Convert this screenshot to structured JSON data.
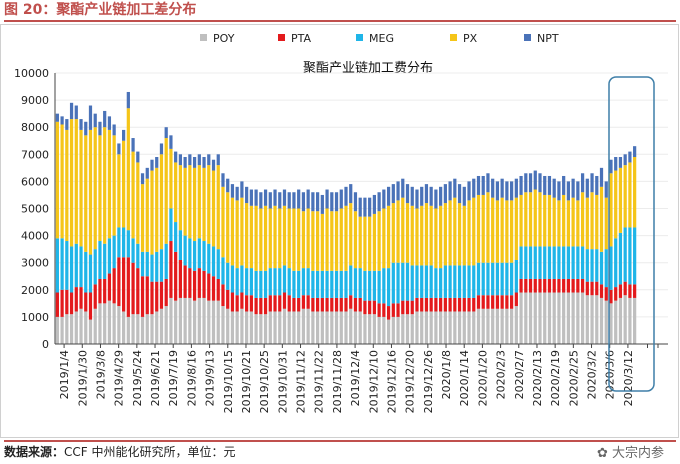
{
  "figure_title": "图 20：聚酯产业链加工差分布",
  "source_label": "数据来源：",
  "source_text": "CCF 中州能化研究所，单位：元",
  "watermark": "大宗内参",
  "colors": {
    "POY": "#bfbfbf",
    "PTA": "#e31a1c",
    "MEG": "#1fb5e8",
    "PX": "#f5c518",
    "NPT": "#4a72b8",
    "accent": "#c0504d",
    "highlight": "#3f7fa8"
  },
  "chart_data": {
    "type": "bar",
    "stacked": true,
    "title": "聚酯产业链加工费分布",
    "ylim": [
      0,
      10000
    ],
    "yticks": [
      0,
      1000,
      2000,
      3000,
      4000,
      5000,
      6000,
      7000,
      8000,
      9000,
      10000
    ],
    "legend_position": "top",
    "series_names": [
      "POY",
      "PTA",
      "MEG",
      "PX",
      "NPT"
    ],
    "tick_labels": [
      "2019/1/4",
      "2019/1/30",
      "2019/3/8",
      "2019/4/29",
      "2019/5/24",
      "2019/6/21",
      "2019/7/19",
      "2019/8/16",
      "2019/9/13",
      "2019/10/15",
      "2019/10/21",
      "2019/10/25",
      "2019/10/31",
      "2019/11/12",
      "2019/11/22",
      "2019/11/28",
      "2019/12/4",
      "2019/12/10",
      "2019/12/16",
      "2019/12/20",
      "2019/12/26",
      "2020/1/8",
      "2020/1/14",
      "2020/1/20",
      "2020/2/3",
      "2020/2/7",
      "2020/2/13",
      "2020/2/19",
      "2020/2/25",
      "2020/3/2",
      "2020/3/6",
      "2020/3/12"
    ],
    "totals": [
      8500,
      8400,
      8300,
      8900,
      8800,
      8300,
      8200,
      8800,
      8500,
      8200,
      8600,
      8400,
      8100,
      7400,
      7900,
      9300,
      7600,
      7100,
      6300,
      6500,
      6800,
      6900,
      7400,
      8000,
      7700,
      7100,
      7000,
      6900,
      7000,
      6900,
      7000,
      6900,
      7000,
      6800,
      7000,
      6300,
      6100,
      5900,
      5800,
      6000,
      5800,
      5700,
      5700,
      5600,
      5700,
      5600,
      5700,
      5600,
      5700,
      5600,
      5600,
      5700,
      5600,
      5700,
      5600,
      5600,
      5500,
      5700,
      5600,
      5600,
      5700,
      5800,
      5900,
      5600,
      5400,
      5400,
      5400,
      5500,
      5600,
      5700,
      5800,
      5900,
      6000,
      6100,
      5900,
      5800,
      5700,
      5800,
      5900,
      5800,
      5700,
      5800,
      5900,
      6000,
      6100,
      5900,
      5800,
      6000,
      6100,
      6200,
      6200,
      6300,
      6100,
      6000,
      6100,
      6000,
      6000,
      6100,
      6200,
      6300,
      6300,
      6400,
      6300,
      6200,
      6200,
      6100,
      6000,
      6200,
      6000,
      6100,
      6000,
      6300,
      6100,
      6300,
      6200,
      6500,
      6000,
      6800,
      6900,
      6900,
      7000,
      7100,
      7300
    ],
    "poy": [
      1000,
      1000,
      1100,
      1100,
      1200,
      1300,
      1200,
      900,
      1300,
      1500,
      1500,
      1600,
      1500,
      1400,
      1200,
      1000,
      1100,
      1100,
      1000,
      1100,
      1100,
      1200,
      1300,
      1400,
      1700,
      1600,
      1700,
      1700,
      1700,
      1600,
      1700,
      1700,
      1600,
      1600,
      1600,
      1400,
      1300,
      1200,
      1200,
      1300,
      1200,
      1200,
      1100,
      1100,
      1100,
      1200,
      1200,
      1200,
      1300,
      1200,
      1200,
      1200,
      1300,
      1300,
      1200,
      1200,
      1200,
      1200,
      1200,
      1200,
      1200,
      1200,
      1300,
      1200,
      1200,
      1100,
      1100,
      1100,
      1000,
      1000,
      900,
      1000,
      1000,
      1100,
      1100,
      1100,
      1200,
      1200,
      1200,
      1200,
      1200,
      1200,
      1200,
      1200,
      1200,
      1200,
      1200,
      1200,
      1200,
      1300,
      1300,
      1300,
      1300,
      1300,
      1300,
      1300,
      1300,
      1400,
      1900,
      1900,
      1900,
      1900,
      1900,
      1900,
      1900,
      1900,
      1900,
      1900,
      1900,
      1900,
      1900,
      1900,
      1800,
      1800,
      1800,
      1700,
      1600,
      1500,
      1600,
      1700,
      1800,
      1700,
      1700
    ],
    "pta": [
      900,
      1000,
      900,
      800,
      900,
      800,
      700,
      1000,
      900,
      900,
      900,
      1000,
      1300,
      1800,
      2000,
      2200,
      1900,
      1700,
      1500,
      1400,
      1200,
      1100,
      1000,
      1000,
      2100,
      1800,
      1400,
      1200,
      1100,
      1100,
      1100,
      1000,
      1000,
      900,
      800,
      800,
      700,
      700,
      600,
      600,
      600,
      600,
      600,
      600,
      600,
      600,
      600,
      600,
      600,
      600,
      500,
      500,
      500,
      500,
      500,
      500,
      500,
      500,
      500,
      500,
      500,
      500,
      500,
      500,
      500,
      500,
      500,
      500,
      500,
      500,
      500,
      500,
      500,
      500,
      500,
      500,
      500,
      500,
      500,
      500,
      500,
      500,
      500,
      500,
      500,
      500,
      500,
      500,
      500,
      500,
      500,
      500,
      500,
      500,
      500,
      500,
      500,
      500,
      500,
      500,
      500,
      500,
      500,
      500,
      500,
      500,
      500,
      500,
      500,
      500,
      500,
      500,
      500,
      500,
      500,
      500,
      500,
      500,
      500,
      500,
      500,
      500,
      500
    ],
    "meg": [
      2000,
      1900,
      1800,
      1700,
      1600,
      1500,
      1500,
      1400,
      1300,
      1400,
      1300,
      1300,
      1200,
      1100,
      1100,
      1000,
      900,
      900,
      900,
      900,
      1000,
      1100,
      1200,
      1300,
      1200,
      1100,
      1100,
      1100,
      1100,
      1100,
      1100,
      1100,
      1100,
      1100,
      1100,
      1000,
      1000,
      1000,
      1000,
      1000,
      1000,
      1000,
      1000,
      1000,
      1000,
      1000,
      1000,
      1000,
      1000,
      1000,
      1000,
      1000,
      1000,
      1000,
      1000,
      1000,
      1000,
      1000,
      1000,
      1000,
      1000,
      1000,
      1100,
      1100,
      1100,
      1100,
      1100,
      1100,
      1200,
      1300,
      1400,
      1500,
      1500,
      1400,
      1400,
      1300,
      1200,
      1200,
      1200,
      1200,
      1100,
      1100,
      1200,
      1200,
      1200,
      1200,
      1200,
      1200,
      1200,
      1200,
      1200,
      1200,
      1200,
      1200,
      1200,
      1200,
      1200,
      1200,
      1200,
      1200,
      1200,
      1200,
      1200,
      1200,
      1200,
      1200,
      1200,
      1200,
      1200,
      1200,
      1200,
      1200,
      1200,
      1200,
      1200,
      1200,
      1400,
      1600,
      1800,
      1900,
      2000,
      2100,
      2100
    ],
    "npt": [
      300,
      300,
      400,
      600,
      500,
      400,
      500,
      900,
      500,
      500,
      600,
      500,
      400,
      400,
      400,
      600,
      500,
      400,
      400,
      400,
      400,
      400,
      400,
      400,
      500,
      400,
      400,
      400,
      400,
      400,
      400,
      400,
      400,
      400,
      400,
      500,
      500,
      500,
      500,
      600,
      600,
      600,
      600,
      600,
      600,
      600,
      600,
      600,
      600,
      600,
      600,
      700,
      700,
      700,
      700,
      700,
      700,
      700,
      700,
      700,
      700,
      700,
      700,
      700,
      700,
      700,
      700,
      700,
      700,
      700,
      700,
      700,
      700,
      700,
      700,
      700,
      700,
      700,
      700,
      700,
      700,
      700,
      700,
      700,
      700,
      700,
      700,
      700,
      700,
      700,
      700,
      700,
      700,
      700,
      700,
      700,
      700,
      700,
      700,
      700,
      700,
      700,
      700,
      700,
      700,
      700,
      700,
      700,
      700,
      700,
      700,
      700,
      700,
      700,
      700,
      700,
      600,
      500,
      500,
      400,
      400,
      400,
      400
    ]
  }
}
